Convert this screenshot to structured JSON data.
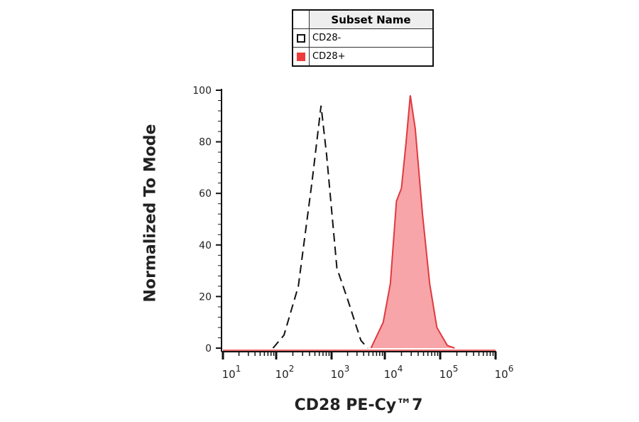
{
  "chart_data": {
    "type": "line",
    "title": "",
    "xlabel": "CD28 PE-Cy™7",
    "ylabel": "Normalized To Mode",
    "xscale": "log",
    "xlim": [
      1,
      6
    ],
    "ylim": [
      0,
      100
    ],
    "x_ticks": [
      {
        "exp": "1"
      },
      {
        "exp": "2"
      },
      {
        "exp": "3"
      },
      {
        "exp": "4"
      },
      {
        "exp": "5"
      },
      {
        "exp": "6"
      }
    ],
    "x_tick_base": "10",
    "y_ticks": [
      "0",
      "20",
      "40",
      "60",
      "80",
      "100"
    ],
    "legend": {
      "title": "Subset Name",
      "placement": "top-center"
    },
    "series": [
      {
        "name": "CD28-",
        "style": "dashed",
        "color": "#111111",
        "fill": "none",
        "log10_x": [
          1.94,
          2.14,
          2.4,
          2.65,
          2.81,
          2.91,
          3.1,
          3.3,
          3.55,
          3.68
        ],
        "y": [
          0,
          5,
          24,
          65,
          94,
          75,
          31,
          19,
          3,
          0
        ]
      },
      {
        "name": "CD28+",
        "style": "solid",
        "color": "#e0393e",
        "fill": "#f7a5a8",
        "log10_x": [
          3.74,
          3.97,
          4.1,
          4.21,
          4.3,
          4.38,
          4.46,
          4.55,
          4.68,
          4.81,
          4.94,
          5.13,
          5.26
        ],
        "y": [
          0,
          10,
          25,
          57,
          62,
          79,
          98,
          85,
          52,
          25,
          8,
          1,
          0
        ]
      }
    ]
  }
}
